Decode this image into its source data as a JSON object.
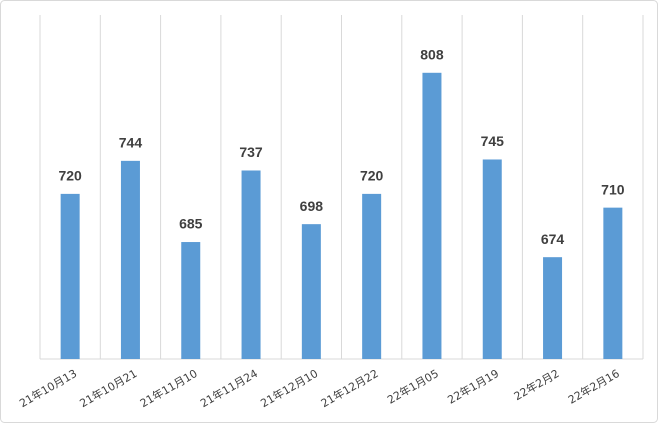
{
  "chart_data": {
    "type": "bar",
    "categories": [
      "21年10月13",
      "21年10月21",
      "21年11月10",
      "21年11月24",
      "21年12月10",
      "21年12月22",
      "22年1月05",
      "22年1月19",
      "22年2月2",
      "22年2月16"
    ],
    "values": [
      720,
      744,
      685,
      737,
      698,
      720,
      808,
      745,
      674,
      710
    ],
    "color": "#5b9bd5",
    "ylim": [
      600,
      850
    ]
  }
}
